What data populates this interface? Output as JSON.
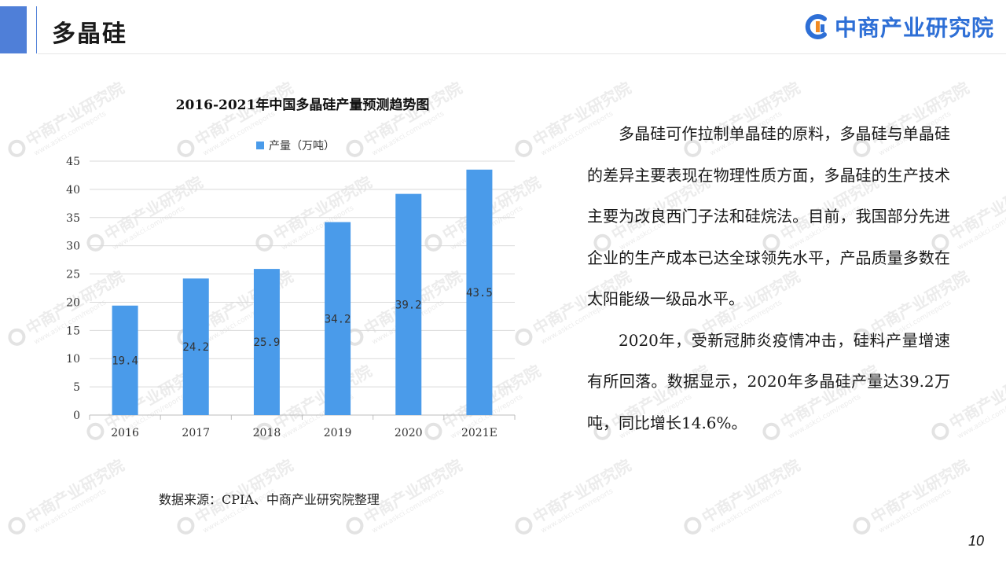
{
  "header": {
    "title": "多晶硅",
    "logo_text": "中商产业研究院"
  },
  "watermark": {
    "text": "中商产业研究院",
    "url": "www.askci.com/reports"
  },
  "chart_data": {
    "type": "bar",
    "title": "2016-2021年中国多晶硅产量预测趋势图",
    "categories": [
      "2016",
      "2017",
      "2018",
      "2019",
      "2020",
      "2021E"
    ],
    "series": [
      {
        "name": "产量（万吨）",
        "values": [
          19.4,
          24.2,
          25.9,
          34.2,
          39.2,
          43.5
        ]
      }
    ],
    "value_labels": [
      "19.4",
      "24.2",
      "25.9",
      "34.2",
      "39.2",
      "43.5"
    ],
    "yticks": [
      "0",
      "5",
      "10",
      "15",
      "20",
      "25",
      "30",
      "35",
      "40",
      "45"
    ],
    "ylim": [
      0,
      45
    ],
    "grid": true,
    "legend": "top",
    "bar_color": "#4a9bea"
  },
  "source_note": "数据来源：CPIA、中商产业研究院整理",
  "paragraphs": [
    "多晶硅可作拉制单晶硅的原料，多晶硅与单晶硅的差异主要表现在物理性质方面，多晶硅的生产技术主要为改良西门子法和硅烷法。目前，我国部分先进企业的生产成本已达全球领先水平，产品质量多数在太阳能级一级品水平。",
    "2020年，受新冠肺炎疫情冲击，硅料产量增速有所回落。数据显示，2020年多晶硅产量达39.2万吨，同比增长14.6%。"
  ],
  "page_number": "10"
}
